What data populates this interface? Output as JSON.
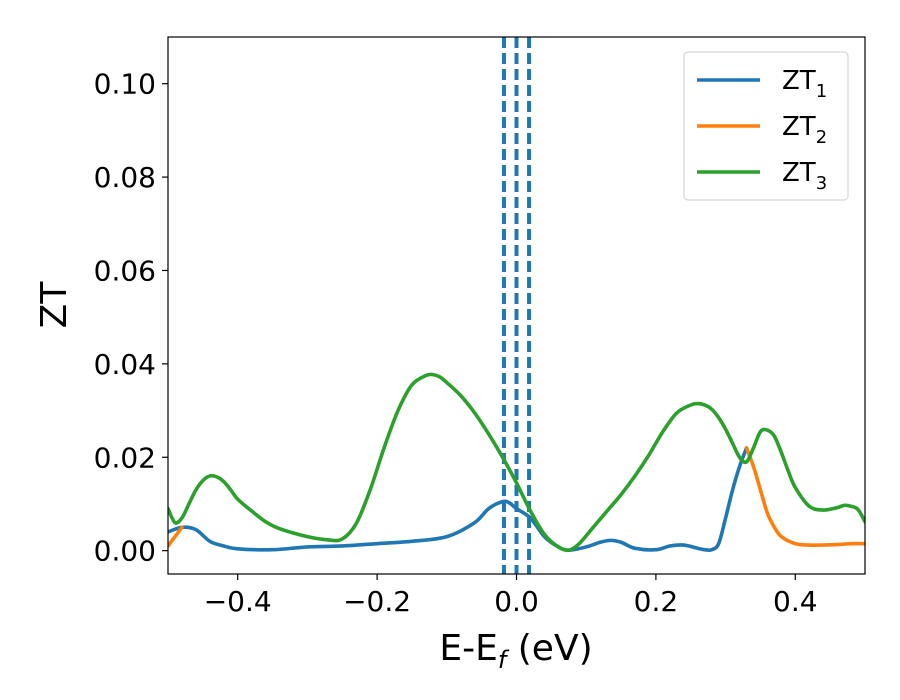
{
  "chart_data": {
    "type": "line",
    "xlabel": "E-E",
    "xlabel_sub": "f",
    "xlabel_unit": " (eV)",
    "ylabel": "ZT",
    "xlim": [
      -0.5,
      0.5
    ],
    "ylim": [
      -0.005,
      0.11
    ],
    "xticks": [
      -0.4,
      -0.2,
      0.0,
      0.2,
      0.4
    ],
    "xtick_labels": [
      "−0.4",
      "−0.2",
      "0.0",
      "0.2",
      "0.4"
    ],
    "yticks": [
      0.0,
      0.02,
      0.04,
      0.06,
      0.08,
      0.1
    ],
    "ytick_labels": [
      "0.00",
      "0.02",
      "0.04",
      "0.06",
      "0.08",
      "0.10"
    ],
    "grid": false,
    "legend_position": "top-right",
    "vertical_lines": [
      {
        "x": 0.0,
        "color": "#000000",
        "style": "dashed"
      },
      {
        "x": -0.018,
        "color": "#1f77b4",
        "style": "dashed"
      },
      {
        "x": 0.0,
        "color": "#1f77b4",
        "style": "dashed"
      },
      {
        "x": 0.018,
        "color": "#1f77b4",
        "style": "dashed"
      }
    ],
    "series": [
      {
        "name": "ZT",
        "name_sub": "1",
        "color": "#1f77b4",
        "x": [
          -0.5,
          -0.48,
          -0.46,
          -0.44,
          -0.42,
          -0.4,
          -0.35,
          -0.3,
          -0.25,
          -0.2,
          -0.15,
          -0.1,
          -0.06,
          -0.04,
          -0.02,
          -0.01,
          0.0,
          0.02,
          0.04,
          0.06,
          0.075,
          0.1,
          0.12,
          0.135,
          0.15,
          0.17,
          0.2,
          0.22,
          0.24,
          0.26,
          0.27,
          0.28,
          0.29,
          0.3,
          0.31,
          0.32,
          0.33
        ],
        "y": [
          0.004,
          0.005,
          0.0045,
          0.002,
          0.001,
          0.0004,
          0.0002,
          0.0008,
          0.001,
          0.0015,
          0.002,
          0.003,
          0.006,
          0.009,
          0.0105,
          0.0102,
          0.009,
          0.007,
          0.003,
          0.0008,
          0.0001,
          0.0008,
          0.0018,
          0.0022,
          0.0018,
          0.0005,
          0.0002,
          0.001,
          0.0012,
          0.0005,
          0.0002,
          0.0002,
          0.0015,
          0.007,
          0.013,
          0.018,
          0.022
        ]
      },
      {
        "name": "ZT",
        "name_sub": "2",
        "color": "#ff7f0e",
        "x": [
          -0.5,
          -0.49,
          -0.48,
          0.33,
          0.34,
          0.35,
          0.36,
          0.37,
          0.38,
          0.4,
          0.42,
          0.44,
          0.46,
          0.48,
          0.5
        ],
        "y": [
          0.001,
          0.003,
          0.005,
          0.022,
          0.018,
          0.013,
          0.008,
          0.005,
          0.003,
          0.0015,
          0.0012,
          0.0012,
          0.0013,
          0.0015,
          0.0015
        ]
      },
      {
        "name": "ZT",
        "name_sub": "3",
        "color": "#2ca02c",
        "x": [
          -0.5,
          -0.49,
          -0.48,
          -0.47,
          -0.46,
          -0.45,
          -0.44,
          -0.43,
          -0.42,
          -0.41,
          -0.4,
          -0.38,
          -0.36,
          -0.34,
          -0.3,
          -0.27,
          -0.25,
          -0.23,
          -0.21,
          -0.19,
          -0.17,
          -0.15,
          -0.13,
          -0.12,
          -0.11,
          -0.1,
          -0.08,
          -0.06,
          -0.04,
          -0.02,
          0.0,
          0.02,
          0.04,
          0.06,
          0.075,
          0.09,
          0.11,
          0.13,
          0.15,
          0.17,
          0.19,
          0.21,
          0.23,
          0.25,
          0.26,
          0.27,
          0.28,
          0.29,
          0.3,
          0.31,
          0.32,
          0.33,
          0.34,
          0.35,
          0.36,
          0.37,
          0.38,
          0.39,
          0.4,
          0.42,
          0.44,
          0.46,
          0.47,
          0.48,
          0.49,
          0.5
        ],
        "y": [
          0.009,
          0.006,
          0.007,
          0.01,
          0.013,
          0.015,
          0.016,
          0.0158,
          0.0148,
          0.013,
          0.011,
          0.0085,
          0.0062,
          0.0047,
          0.003,
          0.0023,
          0.0025,
          0.0058,
          0.013,
          0.022,
          0.03,
          0.0355,
          0.0375,
          0.0377,
          0.0372,
          0.036,
          0.0332,
          0.0295,
          0.025,
          0.02,
          0.0145,
          0.0085,
          0.0035,
          0.0008,
          0.0001,
          0.0015,
          0.005,
          0.0085,
          0.012,
          0.016,
          0.0205,
          0.0255,
          0.0295,
          0.0312,
          0.0315,
          0.0312,
          0.0303,
          0.0285,
          0.026,
          0.023,
          0.02,
          0.019,
          0.022,
          0.0255,
          0.0258,
          0.0245,
          0.021,
          0.017,
          0.0135,
          0.0095,
          0.0087,
          0.0092,
          0.0097,
          0.0095,
          0.0088,
          0.0062
        ]
      }
    ]
  }
}
